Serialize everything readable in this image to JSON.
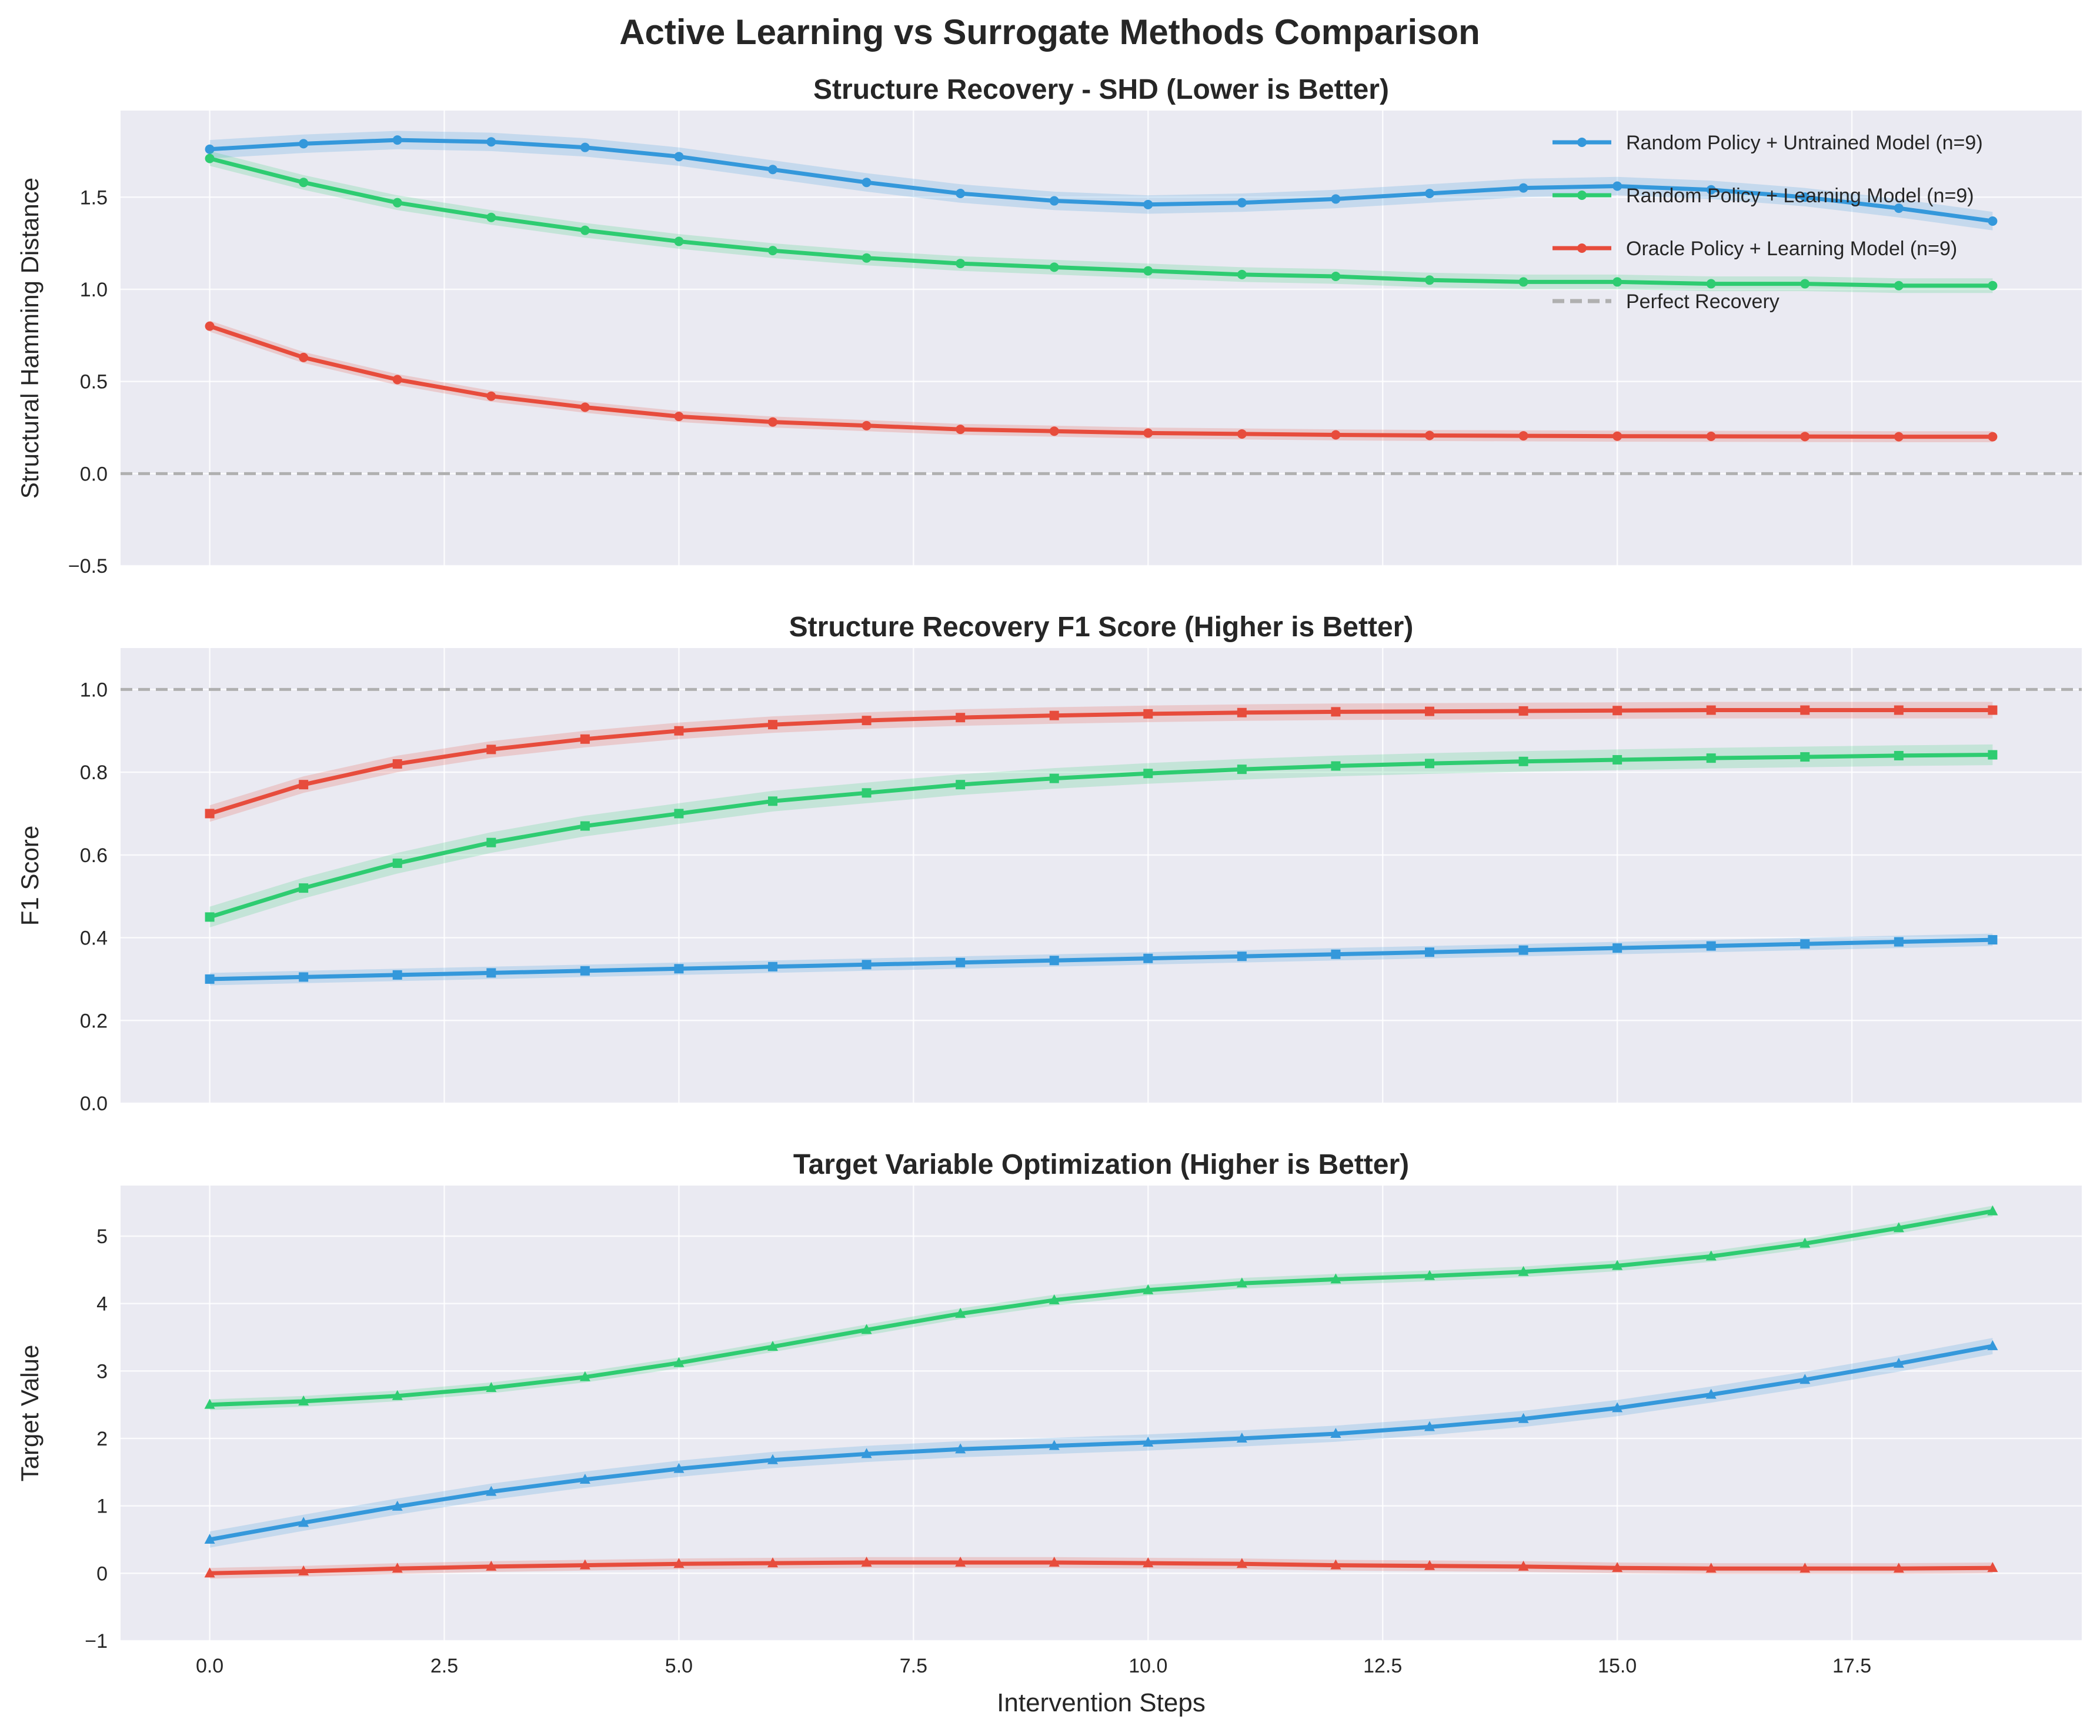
{
  "figure": {
    "title": "Active Learning vs Surrogate Methods Comparison"
  },
  "colors": {
    "background": "#eaeaf2",
    "grid": "#ffffff",
    "reference": "#b0b0b0",
    "random_untrained": "#3498db",
    "random_learning": "#2ecc71",
    "oracle_learning": "#e74c3c"
  },
  "legend": {
    "placement": "upper right",
    "entries": [
      {
        "label": "Random Policy + Untrained Model (n=9)",
        "color": "#3498db",
        "style": "solid"
      },
      {
        "label": "Random Policy + Learning Model (n=9)",
        "color": "#2ecc71",
        "style": "solid"
      },
      {
        "label": "Oracle Policy + Learning Model (n=9)",
        "color": "#e74c3c",
        "style": "solid"
      },
      {
        "label": "Perfect Recovery",
        "color": "#b0b0b0",
        "style": "dashed"
      }
    ]
  },
  "chart_data": [
    {
      "type": "line",
      "title": "Structure Recovery - SHD (Lower is Better)",
      "xlabel": "",
      "ylabel": "Structural Hamming Distance",
      "xlim": [
        -0.95,
        19.95
      ],
      "ylim": [
        -0.5,
        1.97
      ],
      "xticks": [
        0.0,
        2.5,
        5.0,
        7.5,
        10.0,
        12.5,
        15.0,
        17.5
      ],
      "yticks": [
        -0.5,
        0.0,
        0.5,
        1.0,
        1.5
      ],
      "ytick_labels": [
        "−0.5",
        "0.0",
        "0.5",
        "1.0",
        "1.5"
      ],
      "show_xtick_labels": false,
      "grid": true,
      "marker": "circle",
      "reference_line": 0.0,
      "x": [
        0,
        1,
        2,
        3,
        4,
        5,
        6,
        7,
        8,
        9,
        10,
        11,
        12,
        13,
        14,
        15,
        16,
        17,
        18,
        19
      ],
      "series": [
        {
          "name": "Random Policy + Untrained Model (n=9)",
          "color": "#3498db",
          "band": 0.05,
          "values": [
            1.76,
            1.79,
            1.81,
            1.8,
            1.77,
            1.72,
            1.65,
            1.58,
            1.52,
            1.48,
            1.46,
            1.47,
            1.49,
            1.52,
            1.55,
            1.56,
            1.54,
            1.5,
            1.44,
            1.37
          ]
        },
        {
          "name": "Random Policy + Learning Model (n=9)",
          "color": "#2ecc71",
          "band": 0.04,
          "values": [
            1.71,
            1.58,
            1.47,
            1.39,
            1.32,
            1.26,
            1.21,
            1.17,
            1.14,
            1.12,
            1.1,
            1.08,
            1.07,
            1.05,
            1.04,
            1.04,
            1.03,
            1.03,
            1.02,
            1.02
          ]
        },
        {
          "name": "Oracle Policy + Learning Model (n=9)",
          "color": "#e74c3c",
          "band": 0.03,
          "values": [
            0.8,
            0.63,
            0.51,
            0.42,
            0.36,
            0.31,
            0.28,
            0.26,
            0.24,
            0.23,
            0.22,
            0.215,
            0.21,
            0.207,
            0.205,
            0.203,
            0.202,
            0.201,
            0.2,
            0.2
          ]
        }
      ]
    },
    {
      "type": "line",
      "title": "Structure Recovery F1 Score (Higher is Better)",
      "xlabel": "",
      "ylabel": "F1 Score",
      "xlim": [
        -0.95,
        19.95
      ],
      "ylim": [
        0.0,
        1.1
      ],
      "xticks": [
        0.0,
        2.5,
        5.0,
        7.5,
        10.0,
        12.5,
        15.0,
        17.5
      ],
      "yticks": [
        0.0,
        0.2,
        0.4,
        0.6,
        0.8,
        1.0
      ],
      "ytick_labels": [
        "0.0",
        "0.2",
        "0.4",
        "0.6",
        "0.8",
        "1.0"
      ],
      "show_xtick_labels": false,
      "grid": true,
      "marker": "square",
      "reference_line": 1.0,
      "x": [
        0,
        1,
        2,
        3,
        4,
        5,
        6,
        7,
        8,
        9,
        10,
        11,
        12,
        13,
        14,
        15,
        16,
        17,
        18,
        19
      ],
      "series": [
        {
          "name": "Random Policy + Untrained Model (n=9)",
          "color": "#3498db",
          "band": 0.015,
          "values": [
            0.3,
            0.305,
            0.31,
            0.315,
            0.32,
            0.325,
            0.33,
            0.335,
            0.34,
            0.345,
            0.35,
            0.355,
            0.36,
            0.365,
            0.37,
            0.375,
            0.38,
            0.385,
            0.39,
            0.395
          ]
        },
        {
          "name": "Random Policy + Learning Model (n=9)",
          "color": "#2ecc71",
          "band": 0.025,
          "values": [
            0.45,
            0.52,
            0.58,
            0.63,
            0.67,
            0.7,
            0.73,
            0.75,
            0.77,
            0.785,
            0.797,
            0.807,
            0.815,
            0.821,
            0.826,
            0.83,
            0.834,
            0.837,
            0.84,
            0.842
          ]
        },
        {
          "name": "Oracle Policy + Learning Model (n=9)",
          "color": "#e74c3c",
          "band": 0.02,
          "values": [
            0.7,
            0.77,
            0.82,
            0.855,
            0.88,
            0.9,
            0.915,
            0.925,
            0.932,
            0.937,
            0.941,
            0.944,
            0.946,
            0.947,
            0.948,
            0.949,
            0.95,
            0.95,
            0.95,
            0.95
          ]
        }
      ]
    },
    {
      "type": "line",
      "title": "Target Variable Optimization (Higher is Better)",
      "xlabel": "Intervention Steps",
      "ylabel": "Target Value",
      "xlim": [
        -0.95,
        19.95
      ],
      "ylim": [
        -1.0,
        5.75
      ],
      "xticks": [
        0.0,
        2.5,
        5.0,
        7.5,
        10.0,
        12.5,
        15.0,
        17.5
      ],
      "yticks": [
        -1,
        0,
        1,
        2,
        3,
        4,
        5
      ],
      "ytick_labels": [
        "−1",
        "0",
        "1",
        "2",
        "3",
        "4",
        "5"
      ],
      "xtick_labels": [
        "0.0",
        "2.5",
        "5.0",
        "7.5",
        "10.0",
        "12.5",
        "15.0",
        "17.5"
      ],
      "show_xtick_labels": true,
      "grid": true,
      "marker": "triangle",
      "x": [
        0,
        1,
        2,
        3,
        4,
        5,
        6,
        7,
        8,
        9,
        10,
        11,
        12,
        13,
        14,
        15,
        16,
        17,
        18,
        19
      ],
      "series": [
        {
          "name": "Random Policy + Untrained Model (n=9)",
          "color": "#3498db",
          "band": 0.12,
          "values": [
            0.5,
            0.75,
            0.99,
            1.21,
            1.39,
            1.55,
            1.68,
            1.77,
            1.84,
            1.89,
            1.94,
            2.0,
            2.07,
            2.17,
            2.29,
            2.45,
            2.65,
            2.87,
            3.11,
            3.37
          ]
        },
        {
          "name": "Random Policy + Learning Model (n=9)",
          "color": "#2ecc71",
          "band": 0.08,
          "values": [
            2.5,
            2.55,
            2.63,
            2.75,
            2.91,
            3.12,
            3.36,
            3.61,
            3.85,
            4.05,
            4.2,
            4.3,
            4.36,
            4.41,
            4.47,
            4.56,
            4.7,
            4.89,
            5.12,
            5.37
          ]
        },
        {
          "name": "Oracle Policy + Learning Model (n=9)",
          "color": "#e74c3c",
          "band": 0.08,
          "values": [
            0.0,
            0.03,
            0.07,
            0.1,
            0.12,
            0.14,
            0.15,
            0.16,
            0.16,
            0.16,
            0.15,
            0.14,
            0.12,
            0.11,
            0.1,
            0.08,
            0.07,
            0.07,
            0.07,
            0.08
          ]
        }
      ]
    }
  ]
}
